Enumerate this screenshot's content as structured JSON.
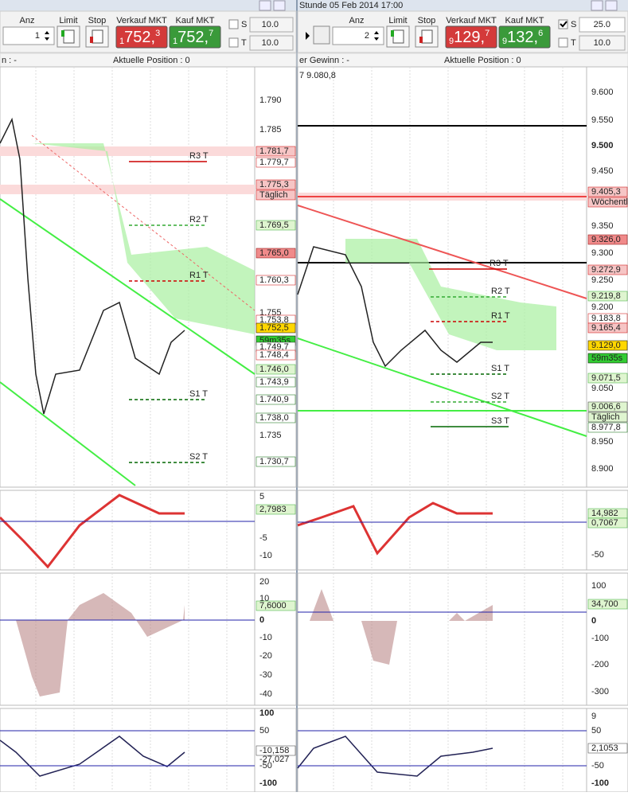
{
  "left": {
    "toolbar": {
      "anz_label": "Anz",
      "anz_value": "1",
      "limit": "Limit",
      "stop": "Stop",
      "sell_label": "Verkauf MKT",
      "sell_small": "1",
      "sell_big": "752,",
      "sell_sup": "3",
      "buy_label": "Kauf MKT",
      "buy_small": "1",
      "buy_big": "752,",
      "buy_sup": "7",
      "s_label": "S",
      "s_value": "10.0",
      "t_label": "T",
      "t_value": "10.0"
    },
    "info": {
      "left": "n : -",
      "position": "Aktuelle Position : 0"
    },
    "price_axis": [
      "1.790",
      "1.785",
      "1.781,7",
      "1.779,7",
      "1.775,3",
      "Täglich",
      "1.769,5",
      "1.765,0",
      "1.760,3",
      "1.755",
      "1.753,8",
      "1.752,5",
      "59m35s",
      "1.749,7",
      "1.748,4",
      "1.746,0",
      "1.743,9",
      "1.740,9",
      "1.738,0",
      "1.735",
      "1.730,7"
    ],
    "levels": [
      "R3 T",
      "R2 T",
      "R1 T",
      "S1 T",
      "S2 T"
    ],
    "macd_axis": [
      "5",
      "2,7983",
      "-5",
      "-10"
    ],
    "mid_axis": [
      "20",
      "10",
      "7,6000",
      "0",
      "-10",
      "-20",
      "-30",
      "-40"
    ],
    "low_axis": [
      "100",
      "50",
      "-10,158",
      "-27,027",
      "-50",
      "-100"
    ]
  },
  "right": {
    "title": "Stunde  05 Feb 2014 17:00",
    "toolbar": {
      "anz_label": "Anz",
      "anz_value": "2",
      "limit": "Limit",
      "stop": "Stop",
      "sell_label": "Verkauf MKT",
      "sell_small": "9",
      "sell_big": "129,",
      "sell_sup": "7",
      "buy_label": "Kauf MKT",
      "buy_small": "9",
      "buy_big": "132,",
      "buy_sup": "6",
      "s_label": "S",
      "s_value": "25.0",
      "t_label": "T",
      "t_value": "10.0"
    },
    "info": {
      "left": "er Gewinn : -",
      "position": "Aktuelle Position : 0"
    },
    "chart_note": "7 9.080,8",
    "price_axis": [
      "9.600",
      "9.550",
      "9.500",
      "9.450",
      "9.405,3",
      "Wöchentli",
      "9.350",
      "9.326,0",
      "9.300",
      "9.272,9",
      "9.250",
      "9.219,8",
      "9.200",
      "9.183,8",
      "9.165,4",
      "9.129,0",
      "59m35s",
      "9.071,5",
      "9.050",
      "9.006,6",
      "Täglich",
      "8.977,8",
      "8.950",
      "8.900"
    ],
    "levels": [
      "R3 T",
      "R2 T",
      "R1 T",
      "S1 T",
      "S2 T",
      "S3 T"
    ],
    "macd_axis": [
      "14,982",
      "0,7067",
      "-50"
    ],
    "mid_axis": [
      "100",
      "34,700",
      "0",
      "-100",
      "-200",
      "-300"
    ],
    "low_axis": [
      "9",
      "50",
      "2,1053",
      "-50",
      "-100"
    ]
  }
}
